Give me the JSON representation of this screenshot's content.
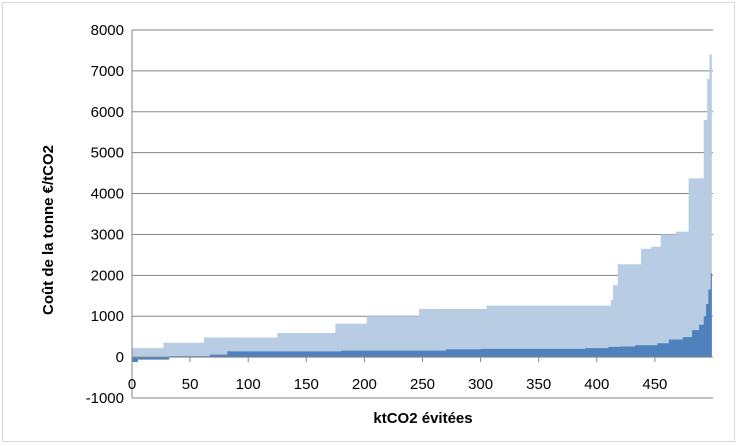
{
  "chart_data": {
    "type": "area",
    "xlabel": "ktCO2 évitées",
    "ylabel": "Coût de la tonne €/tCO2",
    "xlim": [
      0,
      500
    ],
    "ylim": [
      -1000,
      8000
    ],
    "x_ticks": [
      "0",
      "50",
      "100",
      "150",
      "200",
      "250",
      "300",
      "350",
      "400",
      "450"
    ],
    "y_ticks": [
      "-1000",
      "0",
      "1000",
      "2000",
      "3000",
      "4000",
      "5000",
      "6000",
      "7000",
      "8000"
    ],
    "grid": "horizontal",
    "colors": {
      "upper": "#b8cce4",
      "lower": "#4f81bd",
      "grid": "#868686"
    },
    "series": [
      {
        "style": "light-step-area",
        "points": [
          [
            0,
            220
          ],
          [
            27,
            350
          ],
          [
            62,
            480
          ],
          [
            125,
            590
          ],
          [
            175,
            820
          ],
          [
            202,
            1000
          ],
          [
            247,
            1180
          ],
          [
            305,
            1260
          ],
          [
            412,
            1400
          ],
          [
            414,
            1760
          ],
          [
            418,
            2270
          ],
          [
            438,
            2650
          ],
          [
            447,
            2700
          ],
          [
            455,
            3000
          ],
          [
            468,
            3070
          ],
          [
            479,
            4370
          ],
          [
            492,
            5800
          ],
          [
            495,
            6800
          ],
          [
            497,
            7400
          ],
          [
            499,
            7400
          ]
        ]
      },
      {
        "style": "dark-step-area",
        "points": [
          [
            0,
            -120
          ],
          [
            5,
            -60
          ],
          [
            32,
            20
          ],
          [
            67,
            60
          ],
          [
            82,
            140
          ],
          [
            180,
            160
          ],
          [
            270,
            190
          ],
          [
            300,
            200
          ],
          [
            390,
            220
          ],
          [
            410,
            250
          ],
          [
            420,
            260
          ],
          [
            433,
            290
          ],
          [
            452,
            340
          ],
          [
            462,
            430
          ],
          [
            474,
            490
          ],
          [
            482,
            660
          ],
          [
            488,
            790
          ],
          [
            492,
            1000
          ],
          [
            494,
            1300
          ],
          [
            496,
            1650
          ],
          [
            498,
            2050
          ],
          [
            499,
            2050
          ]
        ]
      }
    ]
  }
}
